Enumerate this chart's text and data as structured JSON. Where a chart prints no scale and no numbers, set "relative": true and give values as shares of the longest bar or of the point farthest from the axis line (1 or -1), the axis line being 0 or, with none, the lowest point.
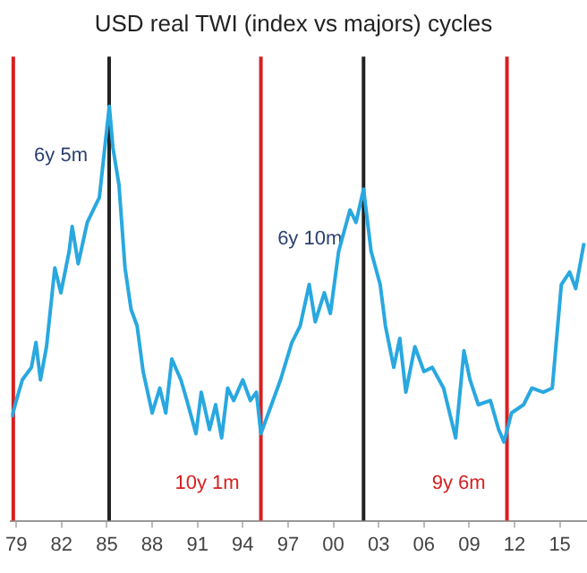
{
  "chart_data": {
    "type": "line",
    "title": "USD real TWI (index vs majors) cycles",
    "relative": true,
    "grid": false,
    "legend": false,
    "marker": "none",
    "line_style": "solid",
    "xlim": [
      1978.65,
      2016.8
    ],
    "xticks": [
      {
        "value": 1979,
        "label": "79"
      },
      {
        "value": 1982,
        "label": "82"
      },
      {
        "value": 1985,
        "label": "85"
      },
      {
        "value": 1988,
        "label": "88"
      },
      {
        "value": 1991,
        "label": "91"
      },
      {
        "value": 1994,
        "label": "94"
      },
      {
        "value": 1997,
        "label": "97"
      },
      {
        "value": 2000,
        "label": "00"
      },
      {
        "value": 2003,
        "label": "03"
      },
      {
        "value": 2006,
        "label": "06"
      },
      {
        "value": 2009,
        "label": "09"
      },
      {
        "value": 2012,
        "label": "12"
      },
      {
        "value": 2015,
        "label": "15"
      }
    ],
    "series": [
      {
        "color": "#29a8e0",
        "x": [
          1978.7,
          1979.0,
          1979.4,
          1980.0,
          1980.3,
          1980.6,
          1981.0,
          1981.55,
          1981.95,
          1982.5,
          1982.7,
          1983.1,
          1983.7,
          1984.1,
          1984.5,
          1984.8,
          1985.16,
          1985.4,
          1985.8,
          1986.2,
          1986.6,
          1987.0,
          1987.4,
          1988.0,
          1988.5,
          1988.9,
          1989.3,
          1989.9,
          1990.3,
          1990.9,
          1991.25,
          1991.8,
          1992.2,
          1992.6,
          1993.0,
          1993.4,
          1994.0,
          1994.5,
          1994.9,
          1995.2,
          1995.7,
          1996.5,
          1997.25,
          1997.8,
          1998.4,
          1998.8,
          1999.4,
          1999.8,
          2000.35,
          2001.1,
          2001.5,
          2002.0,
          2002.5,
          2003.1,
          2003.45,
          2004.0,
          2004.4,
          2004.8,
          2005.4,
          2006.0,
          2006.55,
          2007.3,
          2008.1,
          2008.65,
          2009.05,
          2009.6,
          2010.4,
          2010.95,
          2011.3,
          2011.8,
          2012.6,
          2013.15,
          2013.9,
          2014.5,
          2015.1,
          2015.65,
          2016.05,
          2016.6
        ],
        "values": [
          0.25,
          0.29,
          0.34,
          0.37,
          0.43,
          0.34,
          0.42,
          0.61,
          0.55,
          0.65,
          0.71,
          0.62,
          0.72,
          0.75,
          0.78,
          0.88,
          1.0,
          0.9,
          0.81,
          0.61,
          0.51,
          0.47,
          0.36,
          0.26,
          0.32,
          0.26,
          0.39,
          0.34,
          0.29,
          0.21,
          0.31,
          0.22,
          0.28,
          0.2,
          0.32,
          0.29,
          0.34,
          0.29,
          0.31,
          0.21,
          0.26,
          0.34,
          0.43,
          0.47,
          0.57,
          0.48,
          0.55,
          0.5,
          0.65,
          0.75,
          0.72,
          0.8,
          0.65,
          0.57,
          0.47,
          0.37,
          0.44,
          0.31,
          0.42,
          0.36,
          0.37,
          0.32,
          0.2,
          0.41,
          0.34,
          0.28,
          0.29,
          0.22,
          0.19,
          0.26,
          0.28,
          0.32,
          0.31,
          0.32,
          0.57,
          0.6,
          0.56,
          0.67
        ]
      }
    ],
    "ref_lines": [
      {
        "axis": "x",
        "value": 1978.8,
        "color": "#d62020"
      },
      {
        "axis": "x",
        "value": 1985.15,
        "color": "#222222",
        "label": "6y 5m"
      },
      {
        "axis": "x",
        "value": 1995.2,
        "color": "#d62020",
        "label": "10y 1m"
      },
      {
        "axis": "x",
        "value": 2002.0,
        "color": "#222222",
        "label": "6y 10m"
      },
      {
        "axis": "x",
        "value": 2011.5,
        "color": "#d62020",
        "label": "9y 6m"
      }
    ]
  }
}
